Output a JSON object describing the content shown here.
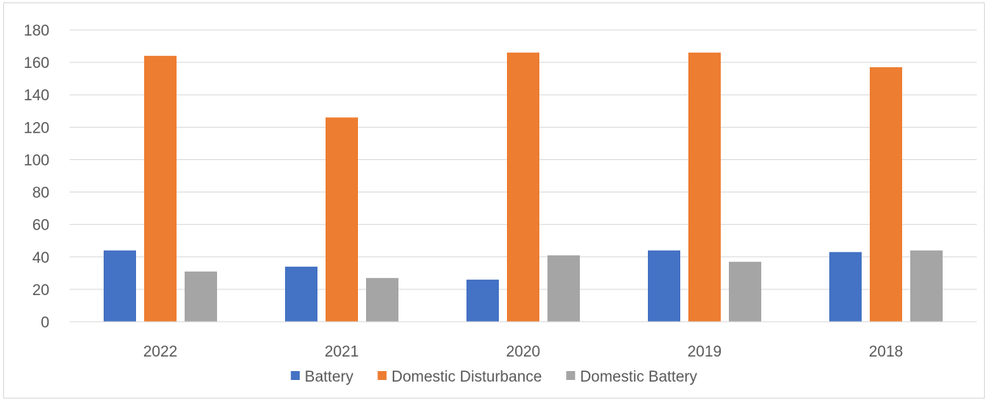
{
  "chart_data": {
    "type": "bar",
    "title": "",
    "xlabel": "",
    "ylabel": "",
    "categories": [
      "2022",
      "2021",
      "2020",
      "2019",
      "2018"
    ],
    "series": [
      {
        "name": "Battery",
        "color": "#4472C4",
        "values": [
          44,
          34,
          26,
          44,
          43
        ]
      },
      {
        "name": "Domestic Disturbance",
        "color": "#ED7D31",
        "values": [
          164,
          126,
          166,
          166,
          157
        ]
      },
      {
        "name": "Domestic Battery",
        "color": "#A5A5A5",
        "values": [
          31,
          27,
          41,
          37,
          44
        ]
      }
    ],
    "ylim": [
      0,
      180
    ],
    "yticks": [
      0,
      20,
      40,
      60,
      80,
      100,
      120,
      140,
      160,
      180
    ],
    "grid": true,
    "legend_position": "bottom"
  }
}
